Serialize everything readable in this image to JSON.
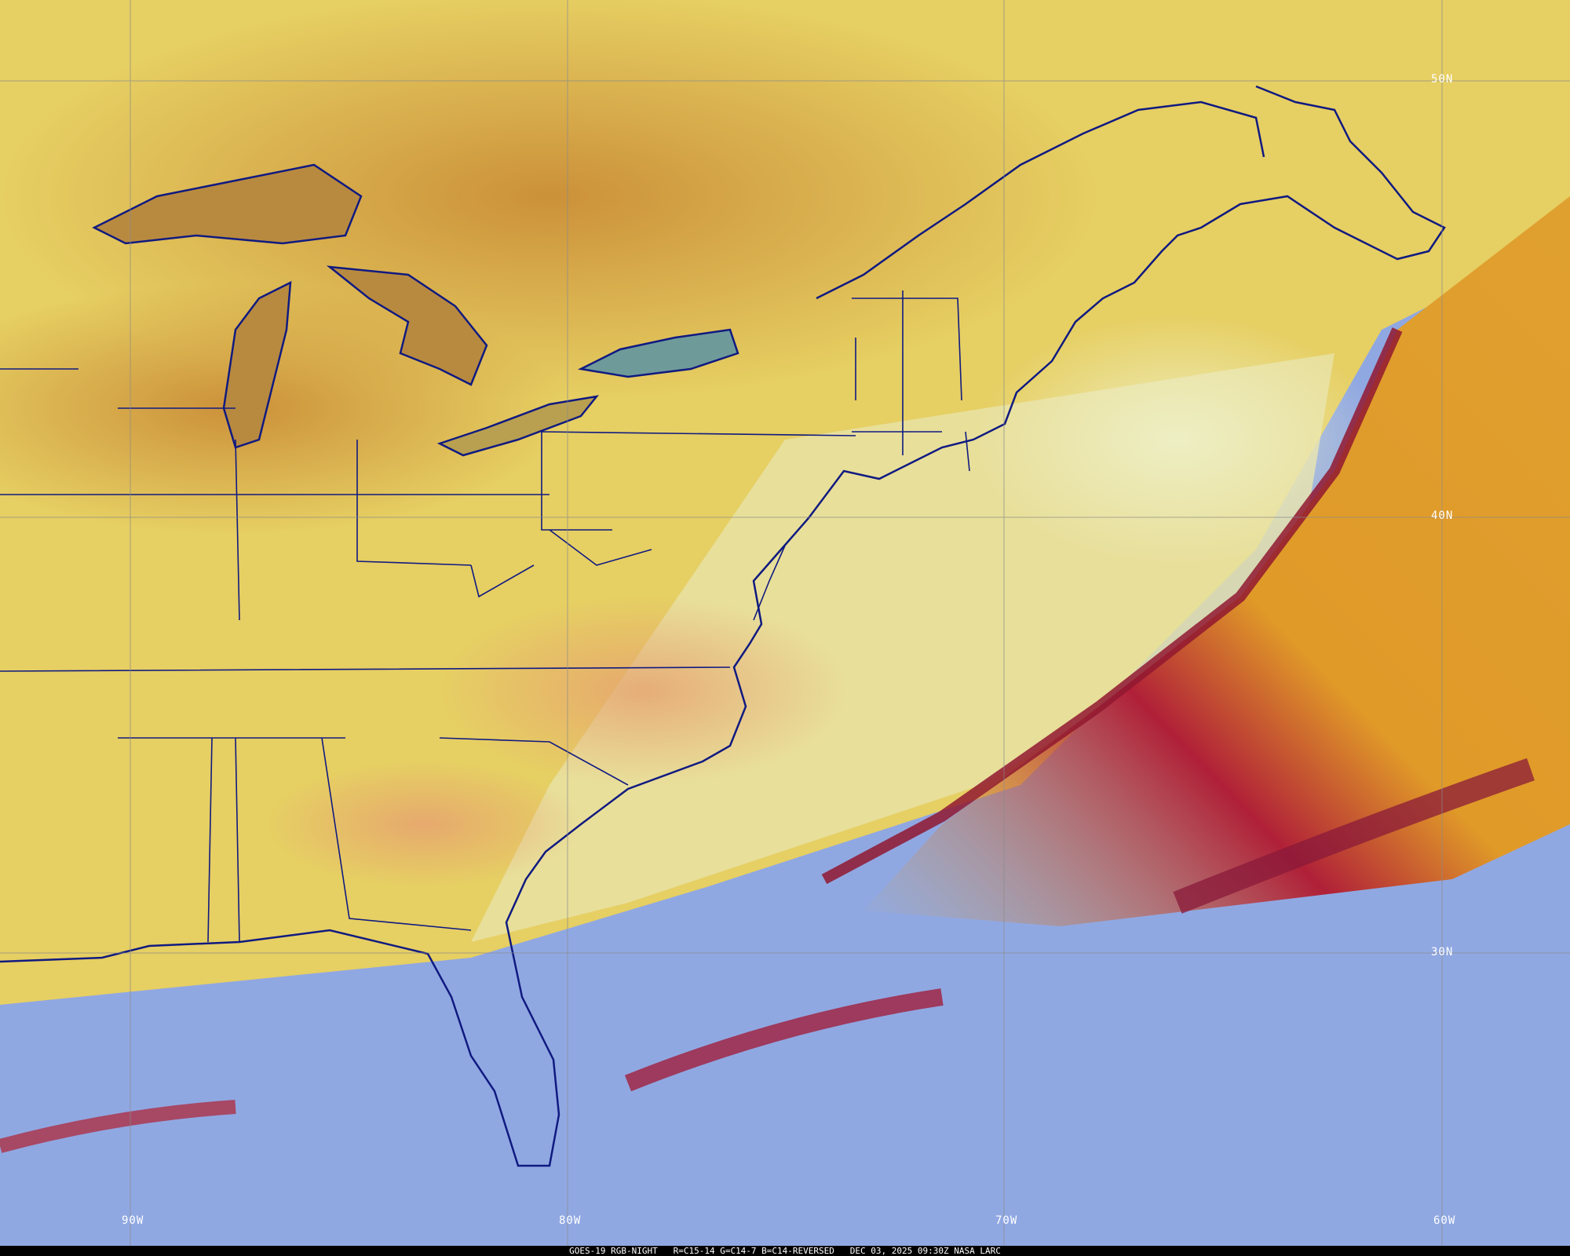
{
  "caption": {
    "product": "GOES-19 RGB-NIGHT",
    "channels": "R=C15-14 G=C14-7 B=C14-REVERSED",
    "datetime": "DEC 03, 2025 09:30Z",
    "credit": "NASA LARC"
  },
  "grid": {
    "lat_labels": [
      "50N",
      "40N",
      "30N"
    ],
    "lon_labels": [
      "90W",
      "80W",
      "70W",
      "60W"
    ]
  },
  "colors": {
    "land_clear": "#e6cf63",
    "land_warm": "#d99a45",
    "ocean_clear": "#90a8e2",
    "cold_front_high_cloud": "#a0203a",
    "mid_cloud": "#e0a030",
    "boundaries": "#101a80",
    "grid": "#8a8a8a"
  }
}
